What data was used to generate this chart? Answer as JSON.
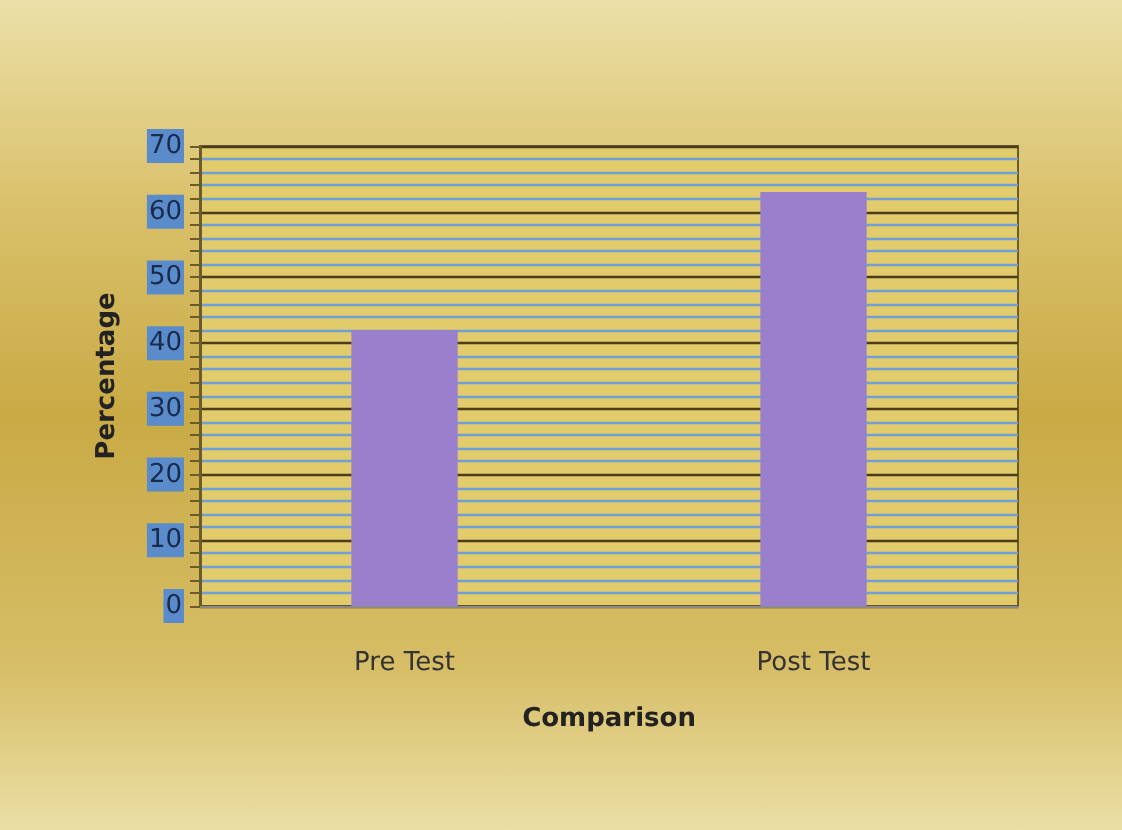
{
  "chart_data": {
    "type": "bar",
    "categories": [
      "Pre Test",
      "Post Test"
    ],
    "values": [
      42,
      63
    ],
    "color": "#9a80cc",
    "xlabel": "Comparison",
    "ylabel": "Percentage",
    "ylim": [
      0,
      70
    ],
    "yticks": [
      0,
      {
        "value": 2,
        "label": null
      },
      {
        "value": 4,
        "label": null
      },
      {
        "value": 6,
        "label": null
      },
      {
        "value": 8,
        "label": null
      },
      10,
      {
        "value": 12,
        "label": null
      },
      {
        "value": 14,
        "label": null
      },
      {
        "value": 16,
        "label": null
      },
      {
        "value": 18,
        "label": null
      },
      20,
      {
        "value": 22,
        "label": null
      },
      {
        "value": 24,
        "label": null
      },
      {
        "value": 26,
        "label": null
      },
      {
        "value": 28,
        "label": null
      },
      30,
      {
        "value": 32,
        "label": null
      },
      {
        "value": 34,
        "label": null
      },
      {
        "value": 36,
        "label": null
      },
      {
        "value": 38,
        "label": null
      },
      40,
      {
        "value": 42,
        "label": null
      },
      {
        "value": 44,
        "label": null
      },
      {
        "value": 46,
        "label": null
      },
      {
        "value": 48,
        "label": null
      },
      50,
      {
        "value": 52,
        "label": null
      },
      {
        "value": 54,
        "label": null
      },
      {
        "value": 56,
        "label": null
      },
      {
        "value": 58,
        "label": null
      },
      60,
      {
        "value": 62,
        "label": null
      },
      {
        "value": 64,
        "label": null
      },
      {
        "value": 66,
        "label": null
      },
      {
        "value": 68,
        "label": null
      },
      70
    ],
    "grid": "y"
  }
}
